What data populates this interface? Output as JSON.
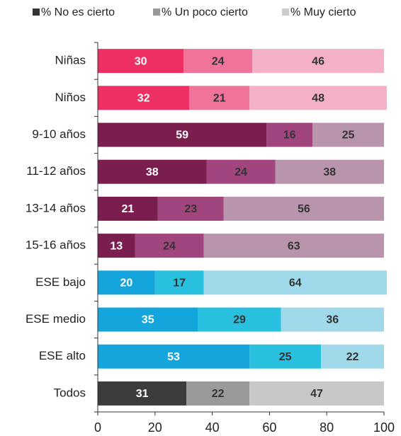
{
  "chart_data": {
    "type": "stacked-barh",
    "categories": [
      "Niñas",
      "Niños",
      "9-10 años",
      "11-12 años",
      "13-14 años",
      "15-16 años",
      "ESE bajo",
      "ESE medio",
      "ESE alto",
      "Todos"
    ],
    "series": [
      {
        "name": "% No es cierto",
        "color": "#333333",
        "values": [
          30,
          32,
          59,
          38,
          21,
          13,
          20,
          35,
          53,
          31
        ],
        "colors": [
          "#ee2f63",
          "#ee2f63",
          "#7a1e4f",
          "#7a1e4f",
          "#7a1e4f",
          "#7a1e4f",
          "#14a5dc",
          "#14a5dc",
          "#14a5dc",
          "#3c3c3c"
        ]
      },
      {
        "name": "% Un poco cierto",
        "color": "#999999",
        "values": [
          24,
          21,
          16,
          24,
          23,
          24,
          17,
          29,
          25,
          22
        ],
        "colors": [
          "#f07499",
          "#f07499",
          "#a0457d",
          "#a0457d",
          "#a0457d",
          "#a0457d",
          "#29c0e0",
          "#29c0e0",
          "#29c0e0",
          "#9a9a9a"
        ]
      },
      {
        "name": "% Muy cierto",
        "color": "#cccccc",
        "values": [
          46,
          48,
          25,
          38,
          56,
          63,
          64,
          36,
          22,
          47
        ],
        "colors": [
          "#f4b1c8",
          "#f4b1c8",
          "#b995ad",
          "#b995ad",
          "#b995ad",
          "#b995ad",
          "#9fd9ea",
          "#9fd9ea",
          "#9fd9ea",
          "#c8c8c8"
        ]
      }
    ],
    "xlim": [
      0,
      100
    ],
    "xticks": [
      0,
      20,
      40,
      60,
      80,
      100
    ],
    "legend": "top"
  }
}
